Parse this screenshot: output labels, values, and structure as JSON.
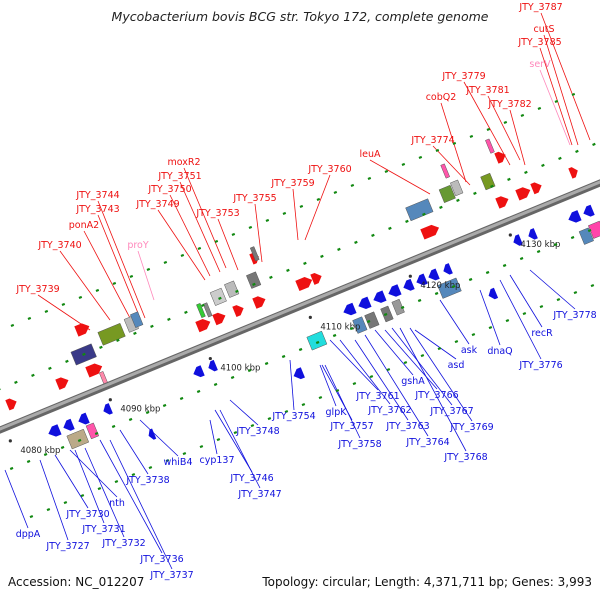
{
  "title": "Mycobacterium bovis BCG str. Tokyo 172, complete genome",
  "footer": {
    "accession": "Accession: NC_012207",
    "summary": "Topology: circular; Length: 4,371,711 bp; Genes: 3,993"
  },
  "colors": {
    "forward": "#ee1111",
    "reverse": "#1010dd",
    "rna": "#ff88bb",
    "backbone": "#888888"
  },
  "scale_ticks": [
    "4080 kbp",
    "4090 kbp",
    "4100 kbp",
    "4110 kbp",
    "4120 kbp",
    "4130 kbp"
  ],
  "gene_labels": {
    "forward": [
      "JTY_3739",
      "JTY_3740",
      "ponA2",
      "JTY_3743",
      "JTY_3744",
      "proY",
      "JTY_3749",
      "JTY_3750",
      "JTY_3751",
      "moxR2",
      "JTY_3753",
      "JTY_3755",
      "JTY_3759",
      "JTY_3760",
      "leuA",
      "JTY_3774",
      "cobQ2",
      "JTY_3779",
      "JTY_3781",
      "JTY_3782",
      "serV",
      "JTY_3785",
      "cutS",
      "JTY_3787"
    ],
    "reverse": [
      "dppA",
      "JTY_3727",
      "JTY_3730",
      "nth",
      "JTY_3731",
      "JTY_3732",
      "JTY_3736",
      "JTY_3737",
      "JTY_3738",
      "whiB4",
      "cyp137",
      "JTY_3746",
      "JTY_3747",
      "JTY_3748",
      "JTY_3754",
      "glpK",
      "JTY_3757",
      "JTY_3758",
      "JTY_3761",
      "JTY_3762",
      "JTY_3763",
      "JTY_3764",
      "gshA",
      "JTY_3766",
      "JTY_3767",
      "JTY_3768",
      "JTY_3769",
      "asd",
      "ask",
      "dnaQ",
      "JTY_3776",
      "recR",
      "JTY_3778"
    ]
  }
}
